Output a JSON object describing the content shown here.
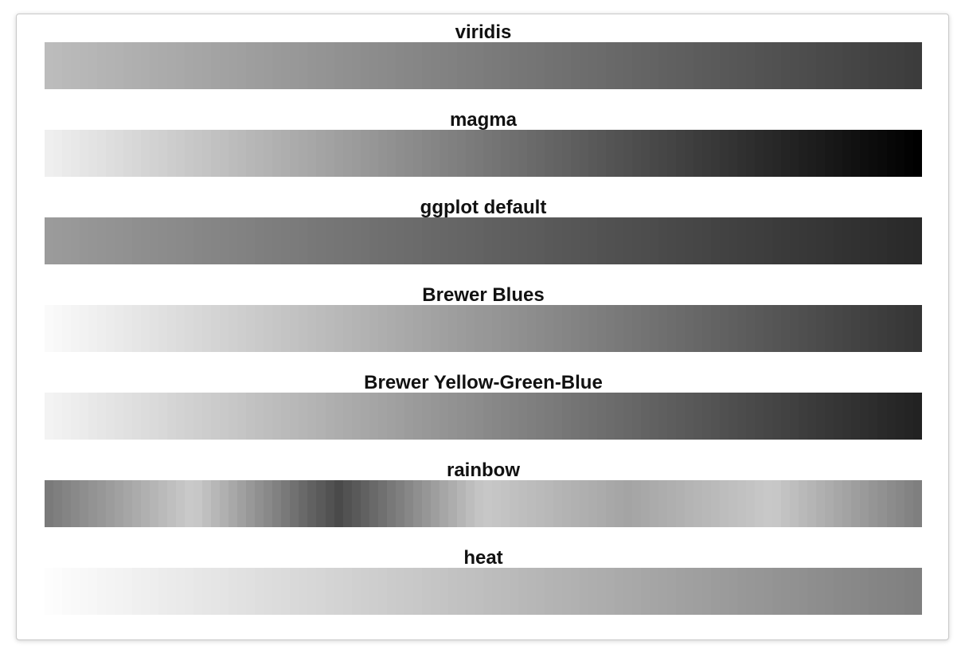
{
  "chart_data": {
    "type": "heatmap",
    "description_role": "colour-strip",
    "palettes": [
      {
        "title": "viridis",
        "from": "#bcbcbc",
        "to": "#3c3c3c"
      },
      {
        "title": "magma",
        "from": "#efefef",
        "to": "#000000"
      },
      {
        "title": "ggplot default",
        "from": "#9b9b9b",
        "to": "#292929"
      },
      {
        "title": "Brewer Blues",
        "from": "#fafafa",
        "to": "#353535"
      },
      {
        "title": "Brewer Yellow-Green-Blue",
        "from": "#f3f3f3",
        "to": "#222222"
      },
      {
        "title": "rainbow",
        "stops": [
          "#7a7a7a",
          "#cbcbcb",
          "#4a4a4a",
          "#c8c8c8",
          "#a4a4a4",
          "#c9c9c9",
          "#7f7f7f"
        ]
      },
      {
        "title": "heat",
        "from": "#fdfdfd",
        "to": "#7f7f7f"
      }
    ],
    "swatches_per_strip": 100
  }
}
